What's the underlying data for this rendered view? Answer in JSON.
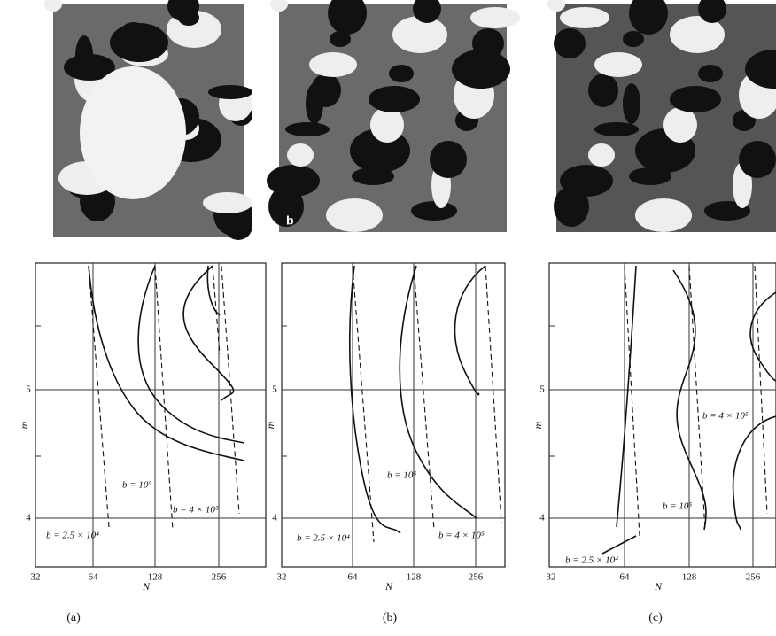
{
  "panels": [
    {
      "caption": "(a)",
      "x_label": "N",
      "y_label": "m",
      "x_ticks": [
        "32",
        "64",
        "128",
        "256"
      ],
      "y_ticks": [
        "5",
        "4"
      ],
      "curve_labels": [
        "b = 10⁵",
        "b = 4 × 10⁵",
        "b = 2.5 × 10⁴"
      ]
    },
    {
      "caption": "(b)",
      "photo_label": "b",
      "x_label": "N",
      "y_label": "m",
      "x_ticks": [
        "32",
        "64",
        "128",
        "256"
      ],
      "y_ticks": [
        "5",
        "4"
      ],
      "curve_labels": [
        "b = 10⁵",
        "b = 4 × 10⁵",
        "b = 2.5 × 10⁴"
      ]
    },
    {
      "caption": "(c)",
      "x_label": "N",
      "y_label": "m",
      "x_ticks": [
        "32",
        "64",
        "128",
        "256"
      ],
      "y_ticks": [
        "5",
        "4"
      ],
      "curve_labels": [
        "b = 4 × 10⁵",
        "b = 10⁵",
        "b = 2.5 × 10⁴"
      ]
    }
  ]
}
